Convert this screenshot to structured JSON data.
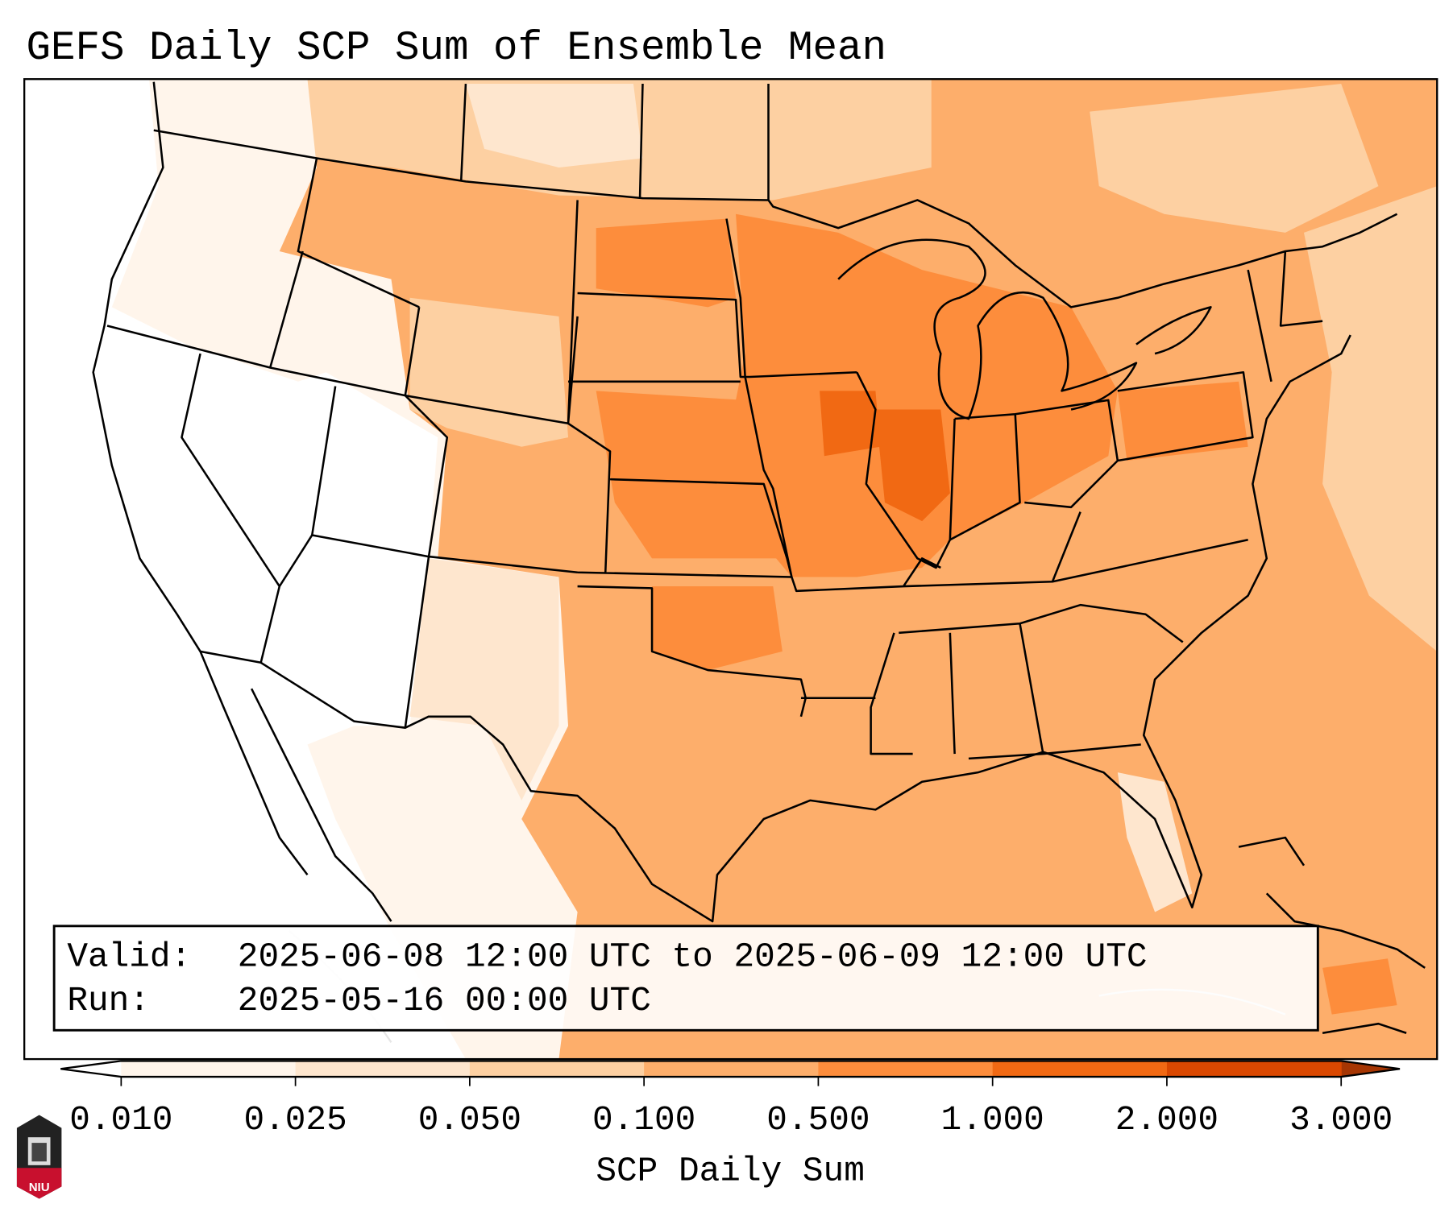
{
  "title": "GEFS Daily SCP Sum of Ensemble Mean",
  "info_box": {
    "valid_label": "Valid:",
    "valid_value": "2025-06-08 12:00 UTC to 2025-06-09 12:00 UTC",
    "run_label": "Run:",
    "run_value": "2025-05-16 00:00 UTC"
  },
  "colorbar": {
    "label": "SCP Daily Sum",
    "ticks": [
      "0.010",
      "0.025",
      "0.050",
      "0.100",
      "0.500",
      "1.000",
      "2.000",
      "3.000"
    ],
    "bin_colors": [
      "#fff5eb",
      "#fee6ce",
      "#fdd0a2",
      "#fdae6b",
      "#fd8d3c",
      "#f16913",
      "#d94801"
    ],
    "under_color": "#ffffff",
    "over_color": "#a63603"
  },
  "map_colors": {
    "none": "#ffffff",
    "trace": "#fff5eb",
    "low": "#fee6ce",
    "lowmid": "#fdd0a2",
    "mid": "#fdae6b",
    "high": "#fd8d3c",
    "higher": "#f16913"
  },
  "logo": {
    "text": "NIU"
  }
}
